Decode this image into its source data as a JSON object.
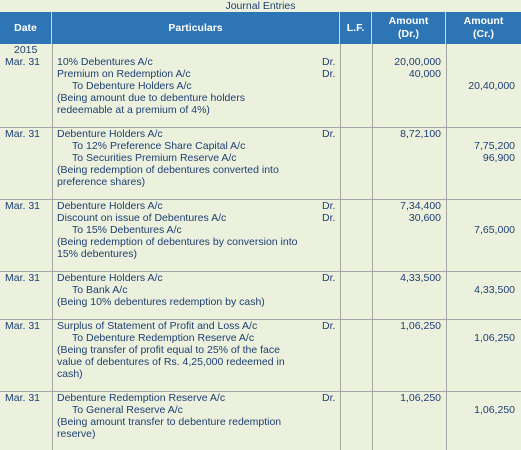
{
  "title": "Journal Entries",
  "headers": {
    "date": "Date",
    "particulars": "Particulars",
    "lf": "L.F.",
    "amount_dr": "Amount\n(Dr.)",
    "amount_cr": "Amount\n(Cr.)"
  },
  "year": "2015",
  "entries": [
    {
      "date": "Mar. 31",
      "lines": [
        {
          "text": "10% Debentures A/c",
          "dr": "Dr.",
          "amt_dr": "20,00,000",
          "amt_cr": ""
        },
        {
          "text": "Premium on Redemption A/c",
          "dr": "Dr.",
          "amt_dr": "40,000",
          "amt_cr": ""
        },
        {
          "text": "To Debenture Holders A/c",
          "dr": "",
          "amt_dr": "",
          "amt_cr": "20,40,000"
        },
        {
          "text": "(Being amount due to debenture holders",
          "dr": "",
          "amt_dr": "",
          "amt_cr": ""
        },
        {
          "text": "redeemable at a premium of 4%)",
          "dr": "",
          "amt_dr": "",
          "amt_cr": ""
        }
      ]
    },
    {
      "date": "Mar. 31",
      "lines": [
        {
          "text": "Debenture Holders A/c",
          "dr": "Dr.",
          "amt_dr": "8,72,100",
          "amt_cr": ""
        },
        {
          "text": "To 12% Preference Share Capital A/c",
          "dr": "",
          "amt_dr": "",
          "amt_cr": "7,75,200"
        },
        {
          "text": "To Securities Premium Reserve A/c",
          "dr": "",
          "amt_dr": "",
          "amt_cr": "96,900"
        },
        {
          "text": "(Being redemption of debentures converted into",
          "dr": "",
          "amt_dr": "",
          "amt_cr": ""
        },
        {
          "text": "preference shares)",
          "dr": "",
          "amt_dr": "",
          "amt_cr": ""
        }
      ]
    },
    {
      "date": "Mar. 31",
      "lines": [
        {
          "text": "Debenture Holders A/c",
          "dr": "Dr.",
          "amt_dr": "7,34,400",
          "amt_cr": ""
        },
        {
          "text": "Discount on issue of Debentures A/c",
          "dr": "Dr.",
          "amt_dr": "30,600",
          "amt_cr": ""
        },
        {
          "text": "To 15% Debentures A/c",
          "dr": "",
          "amt_dr": "",
          "amt_cr": "7,65,000"
        },
        {
          "text": "(Being redemption of debentures by conversion into",
          "dr": "",
          "amt_dr": "",
          "amt_cr": ""
        },
        {
          "text": "15% debentures)",
          "dr": "",
          "amt_dr": "",
          "amt_cr": ""
        }
      ]
    },
    {
      "date": "Mar. 31",
      "lines": [
        {
          "text": "Debenture Holders A/c",
          "dr": "Dr.",
          "amt_dr": "4,33,500",
          "amt_cr": ""
        },
        {
          "text": "To Bank A/c",
          "dr": "",
          "amt_dr": "",
          "amt_cr": "4,33,500"
        },
        {
          "text": "(Being 10% debentures redemption by cash)",
          "dr": "",
          "amt_dr": "",
          "amt_cr": ""
        }
      ]
    },
    {
      "date": "Mar. 31",
      "lines": [
        {
          "text": "Surplus of Statement of Profit and Loss A/c",
          "dr": "Dr.",
          "amt_dr": "1,06,250",
          "amt_cr": ""
        },
        {
          "text": "To Debenture Redemption Reserve A/c",
          "dr": "",
          "amt_dr": "",
          "amt_cr": "1,06,250"
        },
        {
          "text": "(Being transfer of profit equal to 25% of the face",
          "dr": "",
          "amt_dr": "",
          "amt_cr": ""
        },
        {
          "text": "value of debentures of Rs. 4,25,000 redeemed in",
          "dr": "",
          "amt_dr": "",
          "amt_cr": ""
        },
        {
          "text": "cash)",
          "dr": "",
          "amt_dr": "",
          "amt_cr": ""
        }
      ]
    },
    {
      "date": "Mar. 31",
      "lines": [
        {
          "text": "Debenture Redemption Reserve A/c",
          "dr": "Dr.",
          "amt_dr": "1,06,250",
          "amt_cr": ""
        },
        {
          "text": "To General Reserve A/c",
          "dr": "",
          "amt_dr": "",
          "amt_cr": "1,06,250"
        },
        {
          "text": "(Being amount transfer to debenture redemption",
          "dr": "",
          "amt_dr": "",
          "amt_cr": ""
        },
        {
          "text": "reserve)",
          "dr": "",
          "amt_dr": "",
          "amt_cr": ""
        }
      ]
    }
  ]
}
